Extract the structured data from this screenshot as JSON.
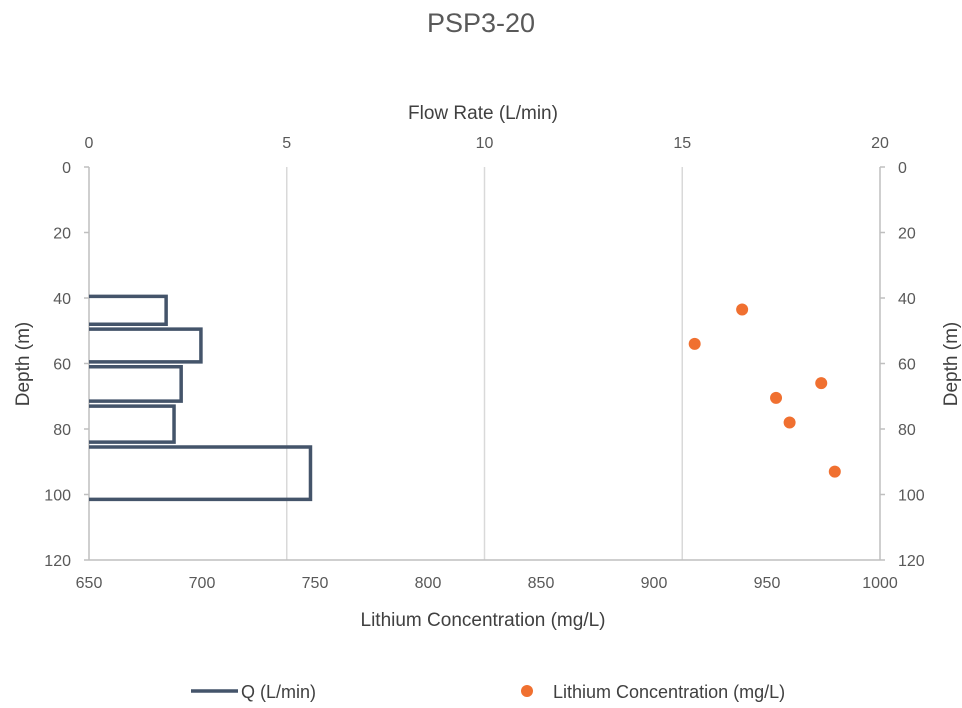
{
  "chart_data": {
    "type": "line+scatter",
    "title": "PSP3-20",
    "top_axis": {
      "label": "Flow Rate (L/min)",
      "range": [
        0,
        20
      ],
      "ticks": [
        0,
        5,
        10,
        15,
        20
      ]
    },
    "bottom_axis": {
      "label": "Lithium Concentration (mg/L)",
      "range": [
        650,
        1000
      ],
      "ticks": [
        650,
        700,
        750,
        800,
        850,
        900,
        950,
        1000
      ]
    },
    "left_axis": {
      "label": "Depth (m)",
      "range": [
        0,
        120
      ],
      "ticks": [
        0,
        20,
        40,
        60,
        80,
        100,
        120
      ],
      "reversed": true
    },
    "right_axis": {
      "label": "Depth (m)",
      "range": [
        0,
        120
      ],
      "ticks": [
        0,
        20,
        40,
        60,
        80,
        100,
        120
      ],
      "reversed": true
    },
    "grid": "vertical",
    "legend_position": "bottom",
    "series": [
      {
        "name": "Q (L/min)",
        "kind": "step-line",
        "axis": "top",
        "color": "#44546a",
        "intervals": [
          {
            "from": 39.5,
            "to": 48.0,
            "q": 1.95
          },
          {
            "from": 49.5,
            "to": 59.5,
            "q": 2.83
          },
          {
            "from": 61.0,
            "to": 71.5,
            "q": 2.33
          },
          {
            "from": 73.0,
            "to": 84.0,
            "q": 2.15
          },
          {
            "from": 85.5,
            "to": 101.5,
            "q": 5.6
          }
        ]
      },
      {
        "name": "Lithium Concentration (mg/L)",
        "kind": "scatter",
        "axis": "bottom",
        "color": "#f07030",
        "points": [
          {
            "conc": 939,
            "depth": 43.5
          },
          {
            "conc": 918,
            "depth": 54
          },
          {
            "conc": 974,
            "depth": 66
          },
          {
            "conc": 954,
            "depth": 70.5
          },
          {
            "conc": 960,
            "depth": 78
          },
          {
            "conc": 980,
            "depth": 93
          }
        ]
      }
    ]
  }
}
